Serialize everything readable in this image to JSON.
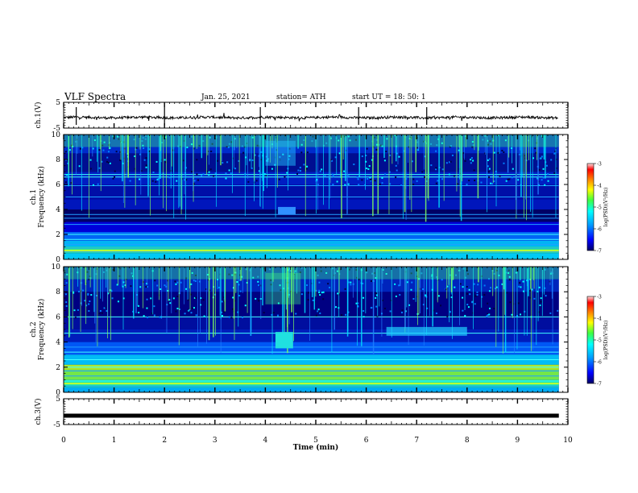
{
  "header": {
    "title": "VLF Spectra",
    "date": "Jan. 25, 2021",
    "station": "station= ATH",
    "start": "start  UT =   18: 50: 1"
  },
  "chart_data": [
    {
      "type": "line",
      "panel": "ch1-waveform",
      "ylabel": "ch.1(V)",
      "ylim": [
        -5,
        5
      ],
      "yticks": [
        "5",
        "-5"
      ],
      "xlim": [
        0,
        10
      ],
      "note": "noisy waveform near -1 V"
    },
    {
      "type": "heatmap",
      "panel": "ch1-spectrogram",
      "ylabel": "ch.1\nFrequency  (kHz)",
      "ylim": [
        0,
        10
      ],
      "yticks": [
        "0",
        "2",
        "4",
        "6",
        "8",
        "10"
      ],
      "xlim": [
        0,
        10
      ],
      "colorbar": {
        "label": "log(PSD)(V²/Hz)",
        "range": [
          -7,
          -3
        ],
        "ticks": [
          "-3",
          "-4",
          "-5",
          "-6",
          "-7"
        ]
      }
    },
    {
      "type": "heatmap",
      "panel": "ch2-spectrogram",
      "ylabel": "ch.2\nFrequency  (kHz)",
      "ylim": [
        0,
        10
      ],
      "yticks": [
        "0",
        "2",
        "4",
        "6",
        "8",
        "10"
      ],
      "xlim": [
        0,
        10
      ],
      "colorbar": {
        "label": "log(PSD)(V²/Hz)",
        "range": [
          -7,
          -3
        ],
        "ticks": [
          "-3",
          "-4",
          "-5",
          "-6",
          "-7"
        ]
      }
    },
    {
      "type": "line",
      "panel": "ch3-waveform",
      "ylabel": "ch.3(V)",
      "ylim": [
        -5,
        5
      ],
      "yticks": [
        "5",
        "-5"
      ],
      "xlim": [
        0,
        10
      ],
      "note": "flat thick trace near 0 V"
    }
  ],
  "xaxis": {
    "label": "Time  (min)",
    "ticks": [
      "0",
      "1",
      "2",
      "3",
      "4",
      "5",
      "6",
      "7",
      "8",
      "9",
      "10"
    ]
  },
  "colors": {
    "colormap": [
      "#00007f",
      "#0000ff",
      "#007fff",
      "#00ffff",
      "#7fff7f",
      "#ffff00",
      "#ff7f00",
      "#ff0000",
      "#7f0000"
    ]
  }
}
